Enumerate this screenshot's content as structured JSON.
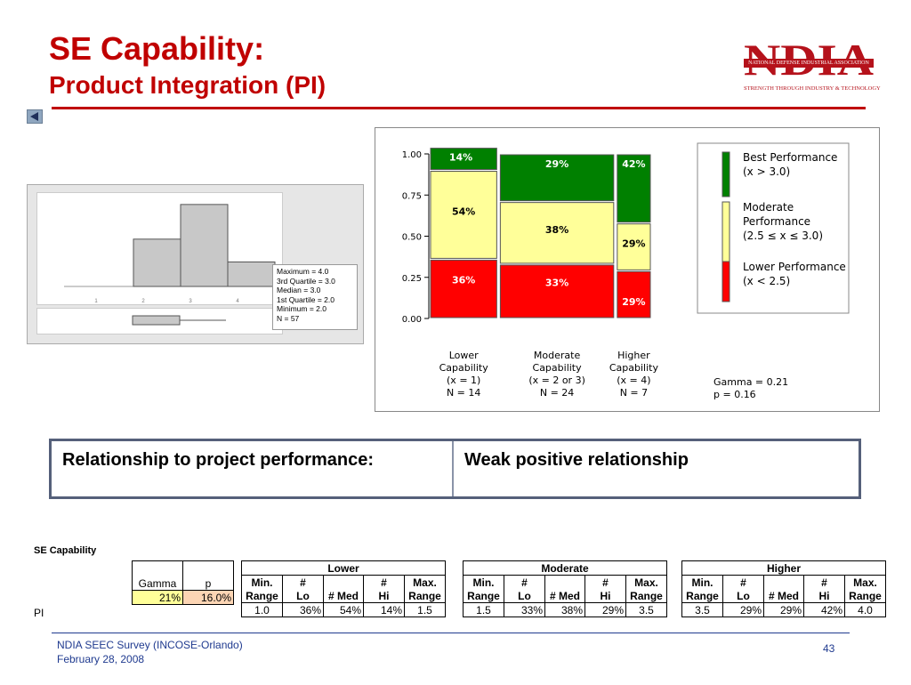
{
  "header": {
    "title": "SE Capability:",
    "subtitle": "Product Integration (PI)"
  },
  "logo": {
    "letters": "NDIA",
    "band": "NATIONAL DEFENSE INDUSTRIAL ASSOCIATION",
    "tagline": "STRENGTH THROUGH INDUSTRY & TECHNOLOGY"
  },
  "histogram": {
    "x_ticks": [
      "1",
      "2",
      "3",
      "4"
    ],
    "bar_fractions": [
      0,
      0.56,
      0.97,
      0.29
    ],
    "stats": [
      "Maximum = 4.0",
      "3rd Quartile = 3.0",
      "Median = 3.0",
      "1st Quartile = 2.0",
      "Minimum = 2.0",
      "N = 57"
    ]
  },
  "chart_data": {
    "type": "bar",
    "title": "",
    "y_ticks": [
      "1.00",
      "0.75",
      "0.50",
      "0.25",
      "0.00"
    ],
    "categories": [
      {
        "label": [
          "Lower",
          "Capability",
          "(x = 1)",
          "N = 14"
        ],
        "N": 14
      },
      {
        "label": [
          "Moderate",
          "Capability",
          "(x = 2 or 3)",
          "N = 24"
        ],
        "N": 24
      },
      {
        "label": [
          "Higher",
          "Capability",
          "(x = 4)",
          "N = 7"
        ],
        "N": 7
      }
    ],
    "series": [
      {
        "name": "Lower Performance",
        "values": [
          36,
          33,
          29
        ],
        "color": "#ff0000",
        "text_color": "#ffffff"
      },
      {
        "name": "Moderate Performance",
        "values": [
          54,
          38,
          29
        ],
        "color": "#ffff99",
        "text_color": "#000000"
      },
      {
        "name": "Best Performance",
        "values": [
          14,
          29,
          42
        ],
        "color": "#008000",
        "text_color": "#ffffff"
      }
    ],
    "value_labels": [
      [
        "36%",
        "54%",
        "14%"
      ],
      [
        "33%",
        "38%",
        "29%"
      ],
      [
        "29%",
        "29%",
        "42%"
      ]
    ],
    "legend": [
      {
        "color": "#008000",
        "text": [
          "Best Performance",
          "(x > 3.0)"
        ]
      },
      {
        "color": "#ffff99",
        "text": [
          "Moderate",
          "Performance",
          "(2.5 ≤ x ≤ 3.0)"
        ]
      },
      {
        "color": "#ff0000",
        "text": [
          "Lower Performance",
          "(x < 2.5)"
        ]
      }
    ],
    "gamma": "Gamma = 0.21",
    "p": "p = 0.16"
  },
  "relationship": {
    "label": "Relationship to project performance:",
    "value": "Weak positive relationship"
  },
  "summary": {
    "section_label": "SE Capability",
    "row_label": "PI",
    "gamma_header": "Gamma",
    "p_header": "p",
    "gamma": "21%",
    "p": "16.0%",
    "groups": [
      {
        "name": "Lower",
        "values": [
          "1.0",
          "36%",
          "54%",
          "14%",
          "1.5"
        ]
      },
      {
        "name": "Moderate",
        "values": [
          "1.5",
          "33%",
          "38%",
          "29%",
          "3.5"
        ]
      },
      {
        "name": "Higher",
        "values": [
          "3.5",
          "29%",
          "29%",
          "42%",
          "4.0"
        ]
      }
    ],
    "col_headers": [
      [
        "Min.",
        "Range"
      ],
      [
        "#",
        "Lo"
      ],
      [
        "",
        "# Med"
      ],
      [
        "#",
        "Hi"
      ],
      [
        "Max.",
        "Range"
      ]
    ]
  },
  "footer": {
    "line1": "NDIA SEEC Survey (INCOSE-Orlando)",
    "line2": "February 28, 2008",
    "page": "43"
  }
}
